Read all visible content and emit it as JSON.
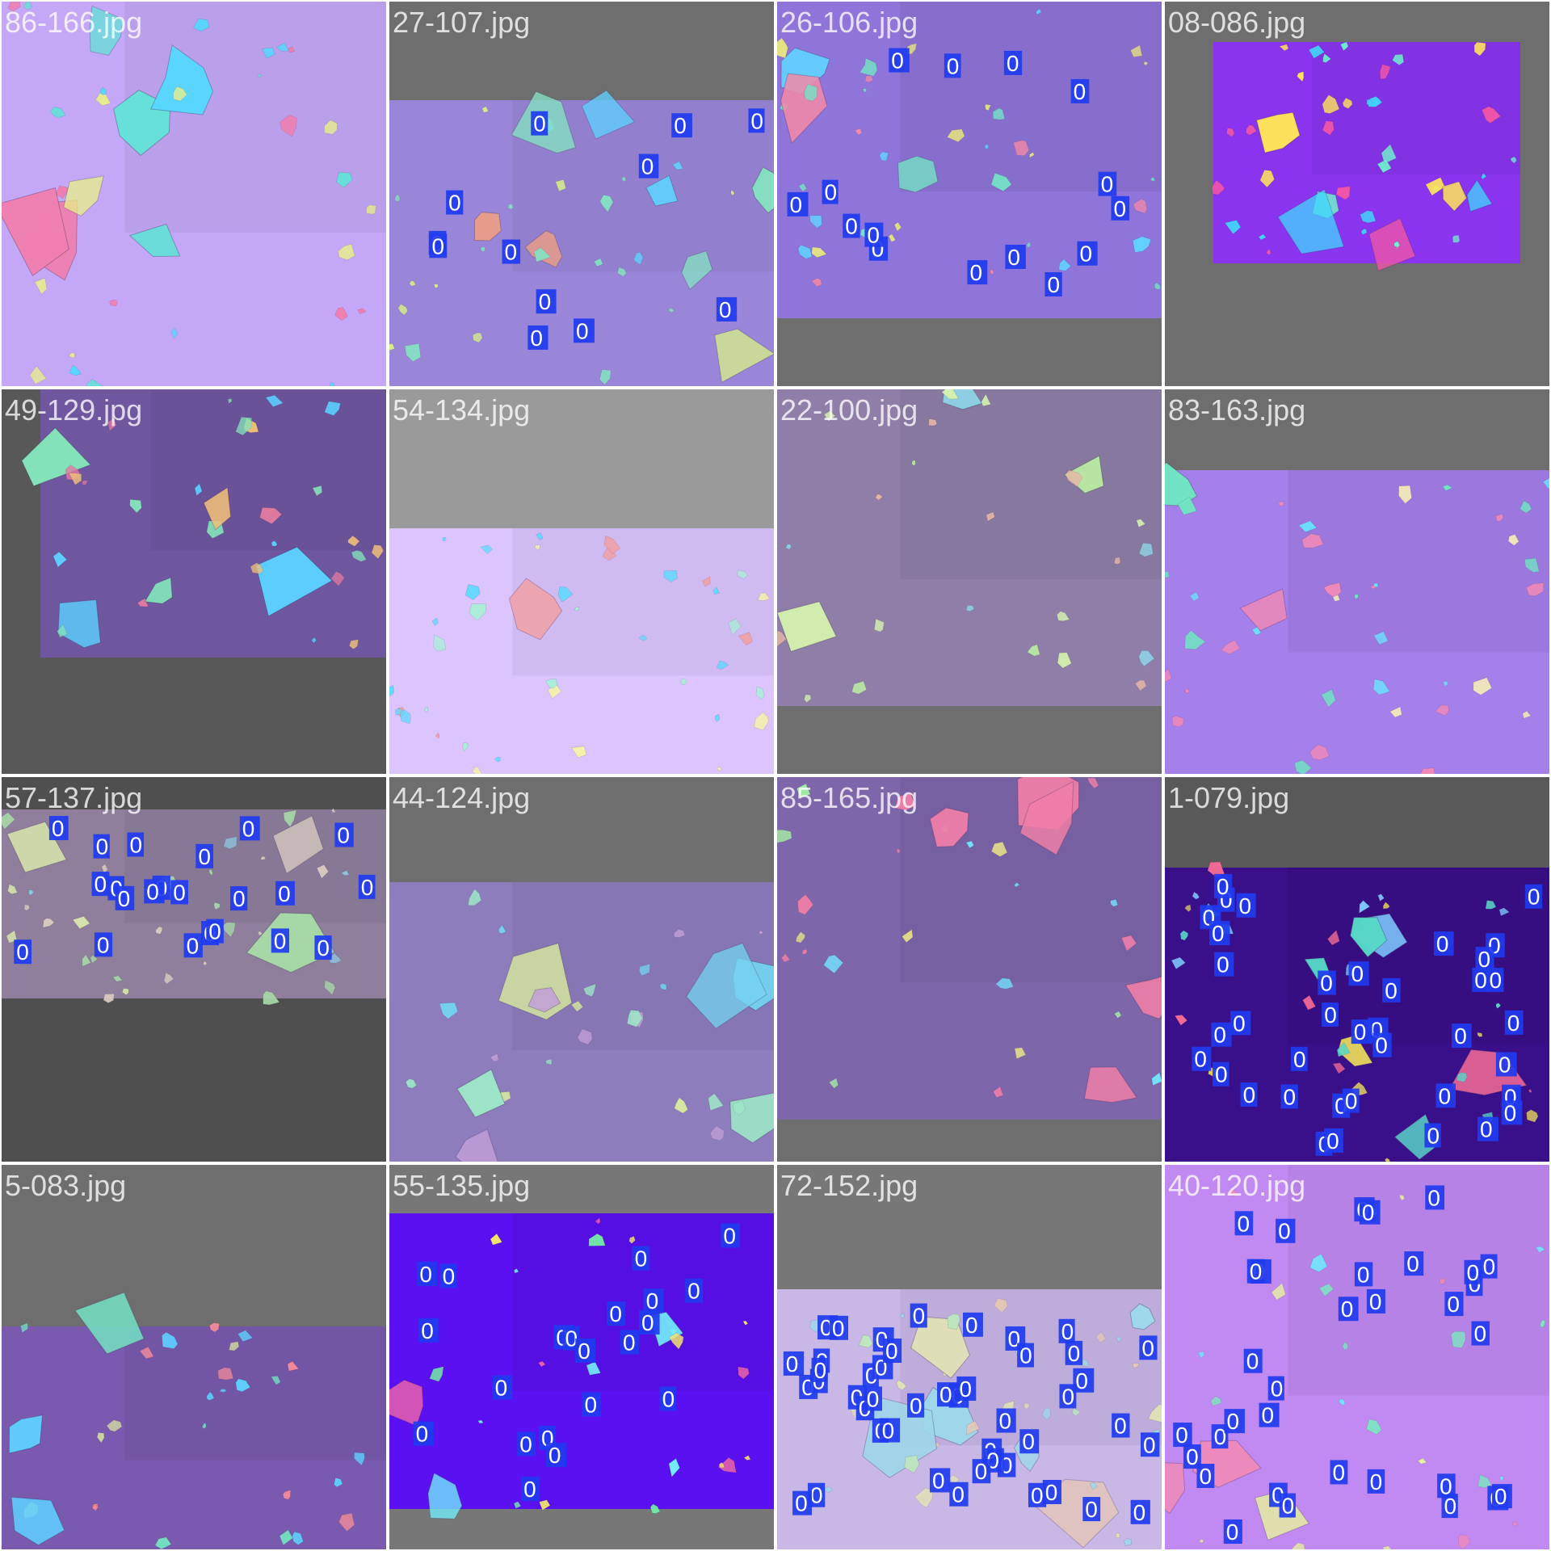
{
  "tiles": [
    {
      "name": "86-166.jpg",
      "bg": "#6e6e6e",
      "base": "#c4a8f7",
      "flake": [
        "#66e0d8",
        "#f07fb0",
        "#e9f08a",
        "#57d7ff"
      ],
      "seed": 11,
      "labels": []
    },
    {
      "name": "27-107.jpg",
      "bg": "#6e6e6e",
      "base": "#9a86d8",
      "flake": [
        "#86e2c2",
        "#f2a080",
        "#d8f08a",
        "#5fd3ff"
      ],
      "seed": 22,
      "labels": [
        "0",
        "0",
        "0",
        "0",
        "0",
        "0",
        "0",
        "0",
        "0",
        "0",
        "0",
        "0"
      ]
    },
    {
      "name": "26-106.jpg",
      "bg": "#6e6e6e",
      "base": "#8f74d9",
      "flake": [
        "#74e6c6",
        "#f58aa8",
        "#e7e77f",
        "#62d2ff"
      ],
      "seed": 33,
      "labels": [
        "0",
        "0",
        "0",
        "0",
        "0",
        "0",
        "0",
        "0",
        "0",
        "0",
        "0",
        "0",
        "0",
        "0",
        "0"
      ]
    },
    {
      "name": "08-086.jpg",
      "bg": "#6e6e6e",
      "base": "#8a34f0",
      "flake": [
        "#f055a8",
        "#ffe45b",
        "#70f0d0",
        "#41d7ff"
      ],
      "seed": 44,
      "labels": []
    },
    {
      "name": "49-129.jpg",
      "bg": "#585858",
      "base": "#6f57a0",
      "flake": [
        "#e27aa0",
        "#84e2bb",
        "#5ccfff",
        "#f0c07a"
      ],
      "seed": 55,
      "labels": []
    },
    {
      "name": "54-134.jpg",
      "bg": "#9a9a9a",
      "base": "#dcc5ff",
      "flake": [
        "#f2a0a4",
        "#a9f0d6",
        "#65d9ff",
        "#f5f2ac"
      ],
      "seed": 66,
      "labels": []
    },
    {
      "name": "22-100.jpg",
      "bg": "#6e6e6e",
      "base": "#8f7fa8",
      "flake": [
        "#b8e6a4",
        "#8ed8ea",
        "#e8b8a6",
        "#d6f2b0"
      ],
      "seed": 77,
      "labels": []
    },
    {
      "name": "83-163.jpg",
      "bg": "#6e6e6e",
      "base": "#a57fea",
      "flake": [
        "#6ce2ff",
        "#f8f2b8",
        "#70e6c2",
        "#f28ab8"
      ],
      "seed": 88,
      "labels": []
    },
    {
      "name": "57-137.jpg",
      "bg": "#4f4f4f",
      "base": "#8f7f9d",
      "flake": [
        "#a8d8a8",
        "#d8cac0",
        "#8ec8e0",
        "#d6e4ac"
      ],
      "seed": 99,
      "labels": [
        "0",
        "0",
        "0",
        "0",
        "0",
        "0",
        "0",
        "0",
        "0",
        "0",
        "0",
        "0",
        "0",
        "0",
        "0",
        "0",
        "0",
        "0",
        "0",
        "0",
        "0",
        "0"
      ]
    },
    {
      "name": "44-124.jpg",
      "bg": "#6e6e6e",
      "base": "#8e7dbd",
      "flake": [
        "#9ee6c8",
        "#d6e6a0",
        "#75d3f0",
        "#c3a0d8"
      ],
      "seed": 111,
      "labels": []
    },
    {
      "name": "85-165.jpg",
      "bg": "#6e6e6e",
      "base": "#7e66aa",
      "flake": [
        "#f07fa8",
        "#a6f0a6",
        "#74e4ff",
        "#e6e08a"
      ],
      "seed": 122,
      "labels": []
    },
    {
      "name": "1-079.jpg",
      "bg": "#595959",
      "base": "#3a0f8a",
      "flake": [
        "#58d7c8",
        "#e2d05e",
        "#f06a96",
        "#7ec8ff"
      ],
      "seed": 133,
      "labels": [
        "0",
        "0",
        "0",
        "0",
        "0",
        "0",
        "0",
        "0",
        "0",
        "0",
        "0",
        "0",
        "0",
        "0",
        "0",
        "0",
        "0",
        "0",
        "0",
        "0",
        "0",
        "0",
        "0",
        "0",
        "0",
        "0",
        "0",
        "0",
        "0",
        "0",
        "0",
        "0",
        "0",
        "0",
        "0",
        "0",
        "0",
        "0"
      ]
    },
    {
      "name": "5-083.jpg",
      "bg": "#6e6e6e",
      "base": "#7a5aae",
      "flake": [
        "#d8e6a0",
        "#f08a9a",
        "#74e0c2",
        "#5fd0ff"
      ],
      "seed": 144,
      "labels": []
    },
    {
      "name": "55-135.jpg",
      "bg": "#777777",
      "base": "#5a10f0",
      "flake": [
        "#73f0ff",
        "#f5e86a",
        "#f066a8",
        "#73f0a6"
      ],
      "seed": 155,
      "labels": [
        "0",
        "0",
        "0",
        "0",
        "0",
        "0",
        "0",
        "0",
        "0",
        "0",
        "0",
        "0",
        "0",
        "0",
        "0",
        "0",
        "0",
        "0",
        "0",
        "0",
        "0"
      ]
    },
    {
      "name": "72-152.jpg",
      "bg": "#777777",
      "base": "#c9b7e6",
      "flake": [
        "#bfe6bf",
        "#e6c8b6",
        "#9ed8ea",
        "#e0e0b8"
      ],
      "seed": 166,
      "labels": [
        "0",
        "0",
        "0",
        "0",
        "0",
        "0",
        "0",
        "0",
        "0",
        "0",
        "0",
        "0",
        "0",
        "0",
        "0",
        "0",
        "0",
        "0",
        "0",
        "0",
        "0",
        "0",
        "0",
        "0",
        "0",
        "0",
        "0",
        "0",
        "0",
        "0",
        "0",
        "0",
        "0",
        "0",
        "0",
        "0",
        "0",
        "0",
        "0",
        "0",
        "0",
        "0",
        "0",
        "0",
        "0"
      ]
    },
    {
      "name": "40-120.jpg",
      "bg": "#8e8e8e",
      "base": "#c18af2",
      "flake": [
        "#73e6ff",
        "#e8f0a0",
        "#f28ab8",
        "#7de6c2"
      ],
      "seed": 177,
      "labels": [
        "0",
        "0",
        "0",
        "0",
        "0",
        "0",
        "0",
        "0",
        "0",
        "0",
        "0",
        "0",
        "0",
        "0",
        "0",
        "0",
        "0",
        "0",
        "0",
        "0",
        "0",
        "0",
        "0",
        "0",
        "0",
        "0",
        "0",
        "0",
        "0",
        "0",
        "0",
        "0",
        "0"
      ]
    }
  ],
  "box_color": "#1f3bf0",
  "label_color": "#ffffff"
}
